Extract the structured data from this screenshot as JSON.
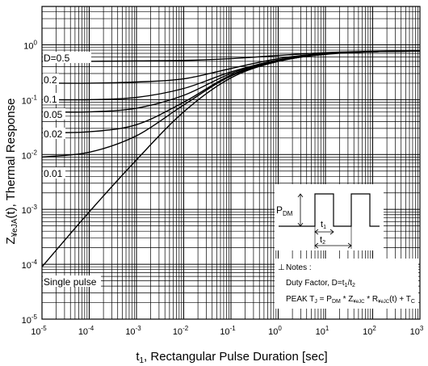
{
  "chart_data": {
    "type": "line",
    "xscale": "log",
    "yscale": "log",
    "xlim": [
      1e-05,
      1000
    ],
    "ylim": [
      1e-05,
      5
    ],
    "grid": true,
    "xlabel_main": "t",
    "xlabel_sub": "1",
    "xlabel_rest": ", Rectangular Pulse Duration [sec]",
    "ylabel_main": "Z",
    "ylabel_sub": "¥eJA",
    "ylabel_rest": "(t), Thermal Response",
    "x_tick_labels": [
      {
        "value": 1e-05,
        "base": "10",
        "exp": "-5"
      },
      {
        "value": 0.0001,
        "base": "10",
        "exp": "-4"
      },
      {
        "value": 0.001,
        "base": "10",
        "exp": "-3"
      },
      {
        "value": 0.01,
        "base": "10",
        "exp": "-2"
      },
      {
        "value": 0.1,
        "base": "10",
        "exp": "-1"
      },
      {
        "value": 1,
        "base": "10",
        "exp": "0"
      },
      {
        "value": 10,
        "base": "10",
        "exp": "1"
      },
      {
        "value": 100,
        "base": "10",
        "exp": "2"
      },
      {
        "value": 1000,
        "base": "10",
        "exp": "3"
      }
    ],
    "y_tick_labels": [
      {
        "value": 1,
        "base": "10",
        "exp": "0"
      },
      {
        "value": 0.1,
        "base": "10",
        "exp": "-1"
      },
      {
        "value": 0.01,
        "base": "10",
        "exp": "-2"
      },
      {
        "value": 0.001,
        "base": "10",
        "exp": "-3"
      },
      {
        "value": 0.0001,
        "base": "10",
        "exp": "-4"
      },
      {
        "value": 1e-05,
        "base": "10",
        "exp": "-5"
      }
    ],
    "series": [
      {
        "name": "D=0.5",
        "x": [
          1e-05,
          0.0001,
          0.001,
          0.01,
          0.1,
          1,
          10,
          100,
          1000
        ],
        "y": [
          0.5,
          0.5,
          0.51,
          0.52,
          0.56,
          0.64,
          0.72,
          0.76,
          0.77
        ]
      },
      {
        "name": "0.2",
        "x": [
          1e-05,
          0.0001,
          0.001,
          0.01,
          0.1,
          1,
          10,
          100,
          1000
        ],
        "y": [
          0.2,
          0.2,
          0.21,
          0.24,
          0.37,
          0.56,
          0.7,
          0.75,
          0.77
        ]
      },
      {
        "name": "0.1",
        "x": [
          1e-05,
          0.0001,
          0.001,
          0.01,
          0.1,
          1,
          10,
          100,
          1000
        ],
        "y": [
          0.1,
          0.1,
          0.11,
          0.16,
          0.32,
          0.53,
          0.69,
          0.75,
          0.77
        ]
      },
      {
        "name": "0.05",
        "x": [
          1e-05,
          0.0001,
          0.001,
          0.01,
          0.1,
          1,
          10,
          100,
          1000
        ],
        "y": [
          0.06,
          0.06,
          0.07,
          0.12,
          0.3,
          0.52,
          0.68,
          0.75,
          0.77
        ]
      },
      {
        "name": "0.02",
        "x": [
          1e-05,
          0.0001,
          0.001,
          0.01,
          0.1,
          1,
          10,
          100,
          1000
        ],
        "y": [
          0.025,
          0.026,
          0.035,
          0.09,
          0.28,
          0.51,
          0.68,
          0.75,
          0.77
        ]
      },
      {
        "name": "0.01",
        "x": [
          1e-05,
          0.0001,
          0.001,
          0.01,
          0.1,
          1,
          10,
          100,
          1000
        ],
        "y": [
          0.009,
          0.011,
          0.022,
          0.08,
          0.27,
          0.5,
          0.68,
          0.75,
          0.77
        ]
      },
      {
        "name": "Single pulse",
        "x": [
          1e-05,
          0.0001,
          0.001,
          0.01,
          0.1,
          1,
          10,
          100,
          1000
        ],
        "y": [
          9e-05,
          0.0009,
          0.008,
          0.06,
          0.25,
          0.5,
          0.67,
          0.75,
          0.77
        ]
      }
    ]
  },
  "inset": {
    "pdm_main": "P",
    "pdm_sub": "DM",
    "t1_main": "t",
    "t1_sub": "1",
    "t2_main": "t",
    "t2_sub": "2"
  },
  "notes": {
    "title": "Notes :",
    "line1_prefix": "Duty Factor, D=t",
    "line1_sub1": "1",
    "line1_slash": "/t",
    "line1_sub2": "2",
    "line2_a": "PEAK T",
    "line2_sub_j": "J",
    "line2_b": " = P",
    "line2_sub_dm": "DM",
    "line2_c": " * Z",
    "line2_sub_z": "¥eJC",
    "line2_d": " * R",
    "line2_sub_r": "¥eJC",
    "line2_e": "(t) + T",
    "line2_sub_c": "C"
  }
}
